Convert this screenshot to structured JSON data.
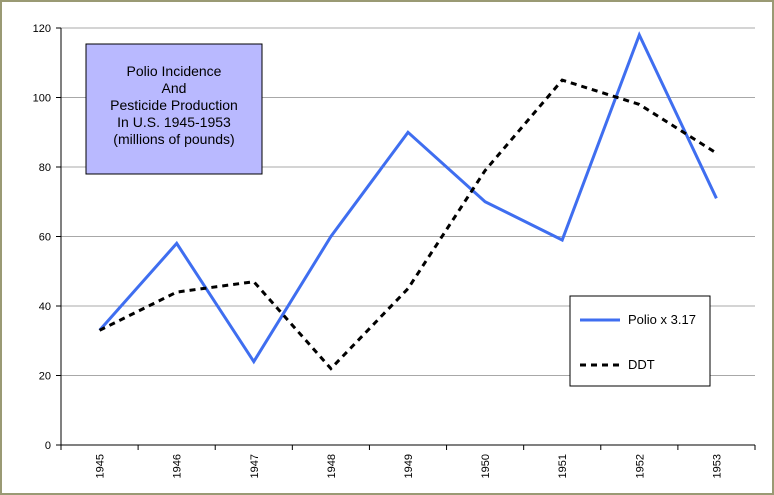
{
  "chart_data": {
    "type": "line",
    "title_lines": [
      "Polio Incidence",
      "And",
      "Pesticide Production",
      "In U.S. 1945-1953",
      "(millions of pounds)"
    ],
    "categories": [
      "1945",
      "1946",
      "1947",
      "1948",
      "1949",
      "1950",
      "1951",
      "1952",
      "1953"
    ],
    "y_ticks": [
      "0",
      "20",
      "40",
      "60",
      "80",
      "100",
      "120"
    ],
    "ylim": [
      0,
      120
    ],
    "grid": true,
    "legend_position": "bottom-right",
    "series": [
      {
        "name": "Polio x 3.17",
        "color": "#3f6ef0",
        "style": "solid",
        "values": [
          33,
          58,
          24,
          60,
          90,
          70,
          59,
          118,
          71
        ]
      },
      {
        "name": "DDT",
        "color": "#000000",
        "style": "dashed",
        "values": [
          33,
          44,
          47,
          22,
          45,
          79,
          105,
          98,
          84
        ]
      }
    ]
  }
}
